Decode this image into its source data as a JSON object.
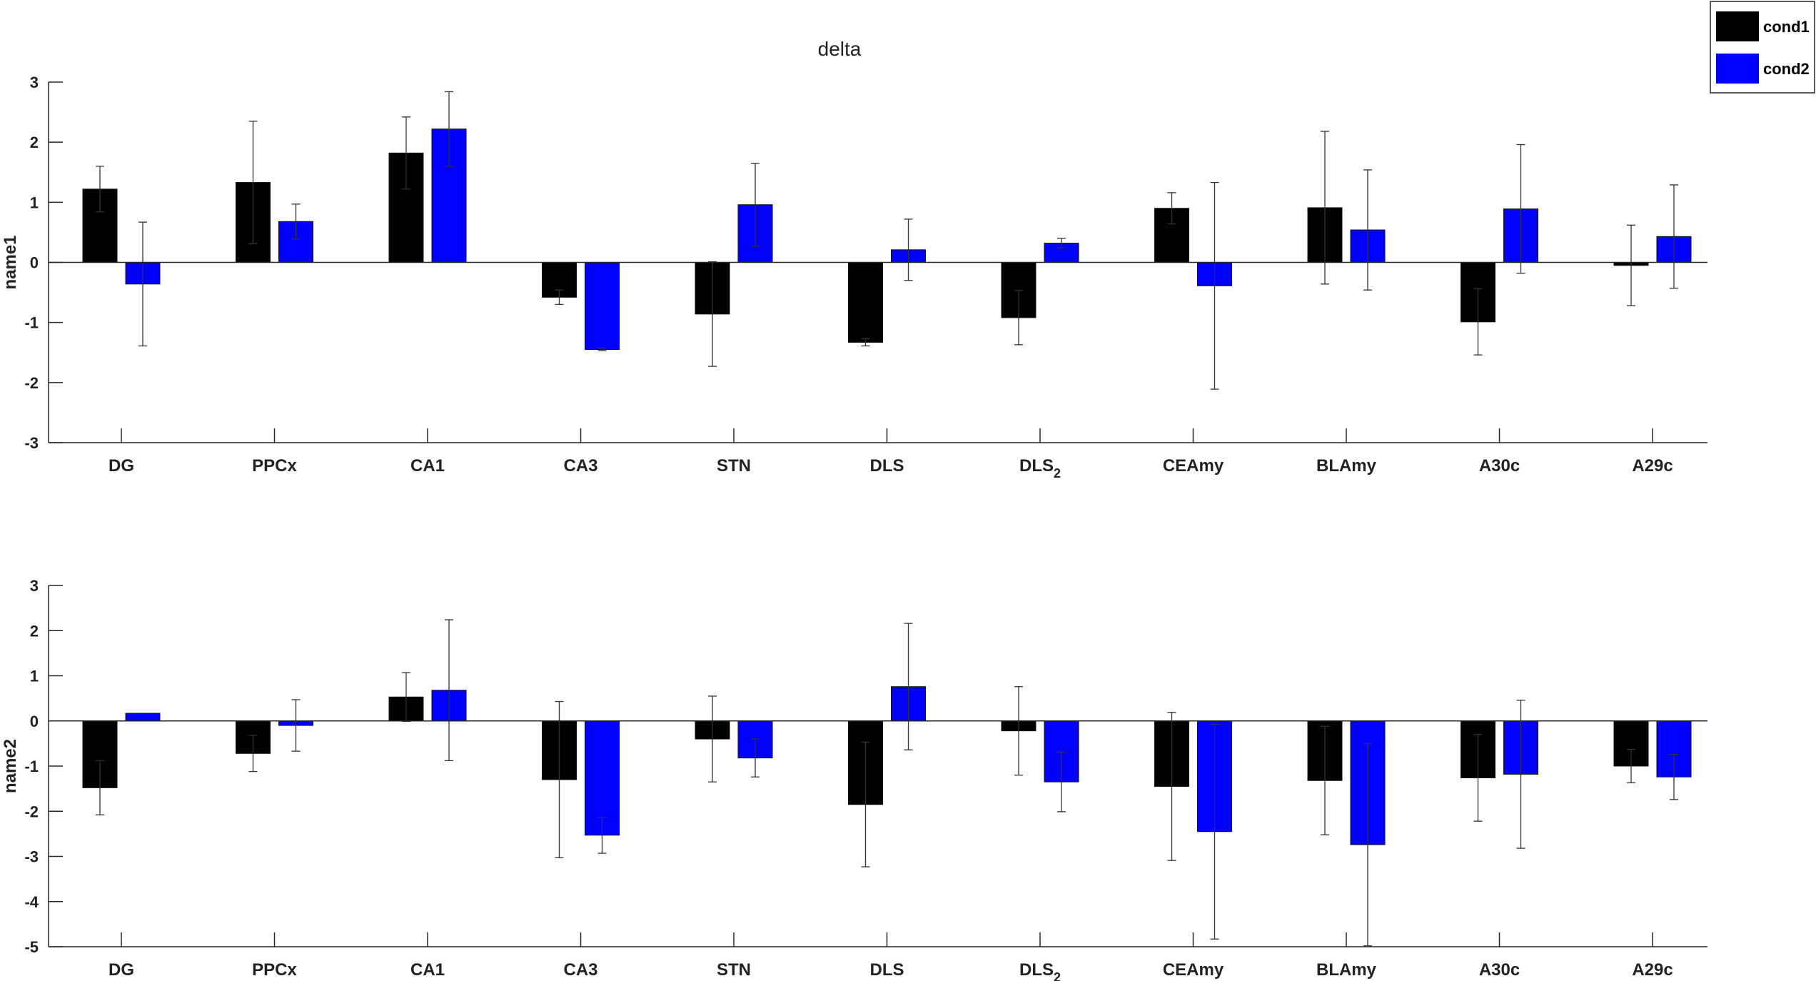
{
  "title": "delta",
  "legend": {
    "placement": "top-right",
    "entries": [
      {
        "name": "cond1",
        "color": "#000000"
      },
      {
        "name": "cond2",
        "color": "#0000ff"
      }
    ]
  },
  "colors": {
    "axis": "#262626",
    "cond1": "#000000",
    "cond2": "#0000ff",
    "errorbar": "#333333"
  },
  "chart_data": [
    {
      "type": "bar",
      "ylabel": "name1",
      "ylim": [
        -3,
        3
      ],
      "yticks": [
        3,
        2,
        1,
        0,
        -1,
        -2,
        -3
      ],
      "categories": [
        {
          "main": "DG",
          "sub": ""
        },
        {
          "main": "PPCx",
          "sub": ""
        },
        {
          "main": "CA1",
          "sub": ""
        },
        {
          "main": "CA3",
          "sub": ""
        },
        {
          "main": "STN",
          "sub": ""
        },
        {
          "main": "DLS",
          "sub": ""
        },
        {
          "main": "DLS",
          "sub": "2"
        },
        {
          "main": "CEAmy",
          "sub": ""
        },
        {
          "main": "BLAmy",
          "sub": ""
        },
        {
          "main": "A30c",
          "sub": ""
        },
        {
          "main": "A29c",
          "sub": ""
        }
      ],
      "series": [
        {
          "name": "cond1",
          "values": [
            1.22,
            1.33,
            1.82,
            -0.58,
            -0.86,
            -1.33,
            -0.92,
            0.9,
            0.91,
            -0.99,
            -0.05
          ],
          "err": [
            0.38,
            1.02,
            0.6,
            0.12,
            0.87,
            0.06,
            0.45,
            0.26,
            1.27,
            0.55,
            0.67
          ]
        },
        {
          "name": "cond2",
          "values": [
            -0.36,
            0.68,
            2.22,
            -1.45,
            0.96,
            0.21,
            0.32,
            -0.39,
            0.54,
            0.89,
            0.43
          ],
          "err": [
            1.03,
            0.29,
            0.62,
            0.02,
            0.69,
            0.51,
            0.08,
            1.72,
            1.0,
            1.07,
            0.86
          ]
        }
      ]
    },
    {
      "type": "bar",
      "ylabel": "name2",
      "ylim": [
        -5,
        3
      ],
      "yticks": [
        3,
        2,
        1,
        0,
        -1,
        -2,
        -3,
        -4,
        -5
      ],
      "categories": [
        {
          "main": "DG",
          "sub": ""
        },
        {
          "main": "PPCx",
          "sub": ""
        },
        {
          "main": "CA1",
          "sub": ""
        },
        {
          "main": "CA3",
          "sub": ""
        },
        {
          "main": "STN",
          "sub": ""
        },
        {
          "main": "DLS",
          "sub": ""
        },
        {
          "main": "DLS",
          "sub": "2"
        },
        {
          "main": "CEAmy",
          "sub": ""
        },
        {
          "main": "BLAmy",
          "sub": ""
        },
        {
          "main": "A30c",
          "sub": ""
        },
        {
          "main": "A29c",
          "sub": ""
        }
      ],
      "series": [
        {
          "name": "cond1",
          "values": [
            -1.48,
            -0.72,
            0.53,
            -1.3,
            -0.4,
            -1.85,
            -0.22,
            -1.45,
            -1.32,
            -1.26,
            -1.0
          ],
          "err": [
            0.6,
            0.4,
            0.54,
            1.73,
            0.95,
            1.38,
            0.98,
            1.64,
            1.2,
            0.96,
            0.37
          ]
        },
        {
          "name": "cond2",
          "values": [
            0.17,
            -0.1,
            0.68,
            -2.53,
            -0.82,
            0.76,
            -1.35,
            -2.45,
            -2.74,
            -1.18,
            -1.24
          ],
          "err": [
            0.0,
            0.57,
            1.56,
            0.4,
            0.42,
            1.4,
            0.66,
            2.38,
            2.24,
            1.64,
            0.5
          ]
        }
      ]
    }
  ]
}
